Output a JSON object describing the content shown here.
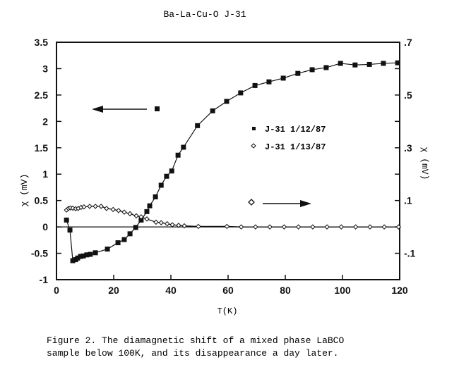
{
  "chart_data": {
    "type": "scatter",
    "title": "Ba-La-Cu-O J-31",
    "xlabel": "T(K)",
    "ylabel": "χ (mV)",
    "ylabel_right": "χ (mV)",
    "xlim": [
      0,
      120
    ],
    "ylim": [
      -1,
      3.5
    ],
    "ylim_right": [
      -0.2,
      0.7
    ],
    "x_ticks": [
      "0",
      "20",
      "40",
      "60",
      "80",
      "100",
      "120"
    ],
    "y_ticks": [
      "3.5",
      "3",
      "2.5",
      "2",
      "1.5",
      "1",
      "0.5",
      "0",
      "-0.5",
      "-1"
    ],
    "y_ticks_right": [
      ".7",
      ".5",
      ".3",
      ".1",
      "-.1"
    ],
    "zero_line": true,
    "grid": false,
    "legend_position": "center-right",
    "series": [
      {
        "name": "J-31 1/12/87",
        "marker": "filled-square",
        "axis": "left",
        "x": [
          3.5,
          4.7,
          5.7,
          6.7,
          7.4,
          8.4,
          9.4,
          10.6,
          11.8,
          13.6,
          17.8,
          21.5,
          23.7,
          25.7,
          27.7,
          29.6,
          31.6,
          32.6,
          34.6,
          36.6,
          38.5,
          40.3,
          42.5,
          44.4,
          49.3,
          54.6,
          59.5,
          64.4,
          69.4,
          74.3,
          79.3,
          84.4,
          89.4,
          94.3,
          99.3,
          104.4,
          109.4,
          114.3,
          119.3
        ],
        "y": [
          0.13,
          -0.06,
          -0.64,
          -0.62,
          -0.59,
          -0.56,
          -0.55,
          -0.53,
          -0.52,
          -0.49,
          -0.42,
          -0.3,
          -0.24,
          -0.13,
          -0.01,
          0.13,
          0.29,
          0.4,
          0.57,
          0.79,
          0.96,
          1.06,
          1.36,
          1.51,
          1.92,
          2.2,
          2.38,
          2.54,
          2.68,
          2.75,
          2.82,
          2.91,
          2.98,
          3.02,
          3.1,
          3.07,
          3.08,
          3.1,
          3.11
        ]
      },
      {
        "name": "J-31 1/13/87",
        "marker": "open-diamond",
        "axis": "right",
        "x": [
          3.5,
          4.2,
          4.9,
          5.7,
          6.7,
          7.6,
          8.6,
          9.6,
          11.6,
          13.6,
          15.6,
          17.5,
          19.8,
          21.7,
          23.7,
          25.7,
          27.9,
          29.6,
          31.6,
          34.8,
          36.6,
          38.7,
          40.5,
          42.7,
          44.7,
          49.6,
          59.6,
          64.6,
          69.6,
          74.6,
          79.6,
          84.6,
          89.6,
          94.6,
          99.6,
          104.6,
          109.6,
          114.6,
          119.6
        ],
        "y": [
          0.064,
          0.07,
          0.072,
          0.071,
          0.069,
          0.07,
          0.074,
          0.076,
          0.078,
          0.078,
          0.078,
          0.07,
          0.066,
          0.062,
          0.056,
          0.05,
          0.042,
          0.038,
          0.03,
          0.018,
          0.016,
          0.012,
          0.008,
          0.006,
          0.004,
          0.002,
          0.002,
          0.0,
          0.0,
          0.0,
          0.0,
          0.0,
          0.0,
          0.0,
          0.0,
          0.0,
          0.0,
          0.0,
          0.0
        ]
      }
    ],
    "annotations": [
      "left arrow beside filled square marker → left axis",
      "right arrow beside open diamond marker → right axis"
    ]
  },
  "caption": {
    "line1": "Figure 2. The diamagnetic shift of a mixed phase LaBCO",
    "line2": "sample below 100K, and its disappearance a day later."
  }
}
